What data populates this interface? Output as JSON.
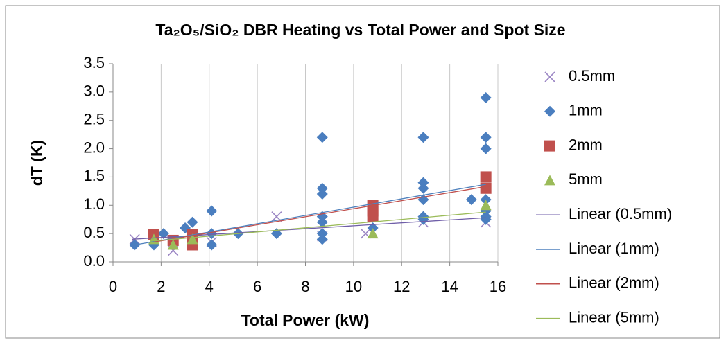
{
  "chart_data": {
    "type": "scatter",
    "title": "Ta₂O₅/SiO₂ DBR Heating vs Total Power and Spot Size",
    "x_label": "Total Power (kW)",
    "y_label": "dT (K)",
    "xlim": [
      0,
      16
    ],
    "xticks": [
      0,
      2,
      4,
      6,
      8,
      10,
      12,
      14,
      16
    ],
    "ylim": [
      0,
      3.5
    ],
    "yticks": [
      {
        "value": 0,
        "label": "0.0"
      },
      0.5,
      {
        "value": 1,
        "label": "1.0"
      },
      1.5,
      {
        "value": 2,
        "label": "2.0"
      },
      2.5,
      {
        "value": 3,
        "label": "3.0"
      },
      3.5
    ],
    "xgrid": true,
    "legend": "right",
    "series": [
      {
        "name": "0.5mm",
        "marker": "x",
        "color": "#9b86c4",
        "x": [
          0.9,
          2.5,
          4.1,
          6.8,
          8.7,
          10.5,
          12.9,
          15.5
        ],
        "values": [
          0.4,
          0.2,
          0.35,
          0.8,
          0.45,
          0.5,
          0.7,
          0.7
        ]
      },
      {
        "name": "1mm",
        "marker": "diamond",
        "color": "#4a7ebf",
        "x": [
          0.9,
          1.7,
          2.1,
          3.0,
          3.3,
          4.1,
          4.1,
          4.1,
          5.2,
          6.8,
          8.7,
          8.7,
          8.7,
          8.7,
          8.7,
          8.7,
          8.7,
          10.8,
          10.8,
          12.9,
          12.9,
          12.9,
          12.9,
          12.9,
          12.9,
          14.9,
          15.5,
          15.5,
          15.5,
          15.5,
          15.5,
          15.5,
          15.5
        ],
        "values": [
          0.3,
          0.3,
          0.5,
          0.6,
          0.7,
          0.9,
          0.5,
          0.3,
          0.5,
          0.5,
          2.2,
          1.3,
          1.2,
          0.8,
          0.7,
          0.5,
          0.4,
          0.6,
          0.9,
          2.2,
          1.4,
          1.3,
          1.1,
          0.8,
          0.75,
          1.1,
          2.9,
          2.2,
          2.0,
          1.1,
          0.9,
          0.8,
          0.75
        ]
      },
      {
        "name": "2mm",
        "marker": "square",
        "color": "#c0504d",
        "x": [
          1.7,
          2.5,
          3.3,
          3.3,
          10.8,
          10.8,
          10.8,
          15.5,
          15.5
        ],
        "values": [
          0.48,
          0.38,
          0.48,
          0.3,
          1.0,
          0.9,
          0.8,
          1.5,
          1.3
        ]
      },
      {
        "name": "5mm",
        "marker": "triangle",
        "color": "#9bbb59",
        "x": [
          1.7,
          2.5,
          3.3,
          10.8,
          15.5
        ],
        "values": [
          0.4,
          0.3,
          0.4,
          0.5,
          1.0
        ]
      },
      {
        "name": "Linear (0.5mm)",
        "marker": "line",
        "color": "#6f5ea8",
        "x": [
          0.8,
          15.5
        ],
        "values": [
          0.4,
          0.78
        ]
      },
      {
        "name": "Linear (1mm)",
        "marker": "line",
        "color": "#4f81bd",
        "x": [
          0.9,
          15.5
        ],
        "values": [
          0.3,
          1.37
        ]
      },
      {
        "name": "Linear (2mm)",
        "marker": "line",
        "color": "#c0504d",
        "x": [
          1.7,
          15.5
        ],
        "values": [
          0.35,
          1.33
        ]
      },
      {
        "name": "Linear (5mm)",
        "marker": "line",
        "color": "#9bbb59",
        "x": [
          1.7,
          15.5
        ],
        "values": [
          0.37,
          0.88
        ]
      }
    ]
  }
}
